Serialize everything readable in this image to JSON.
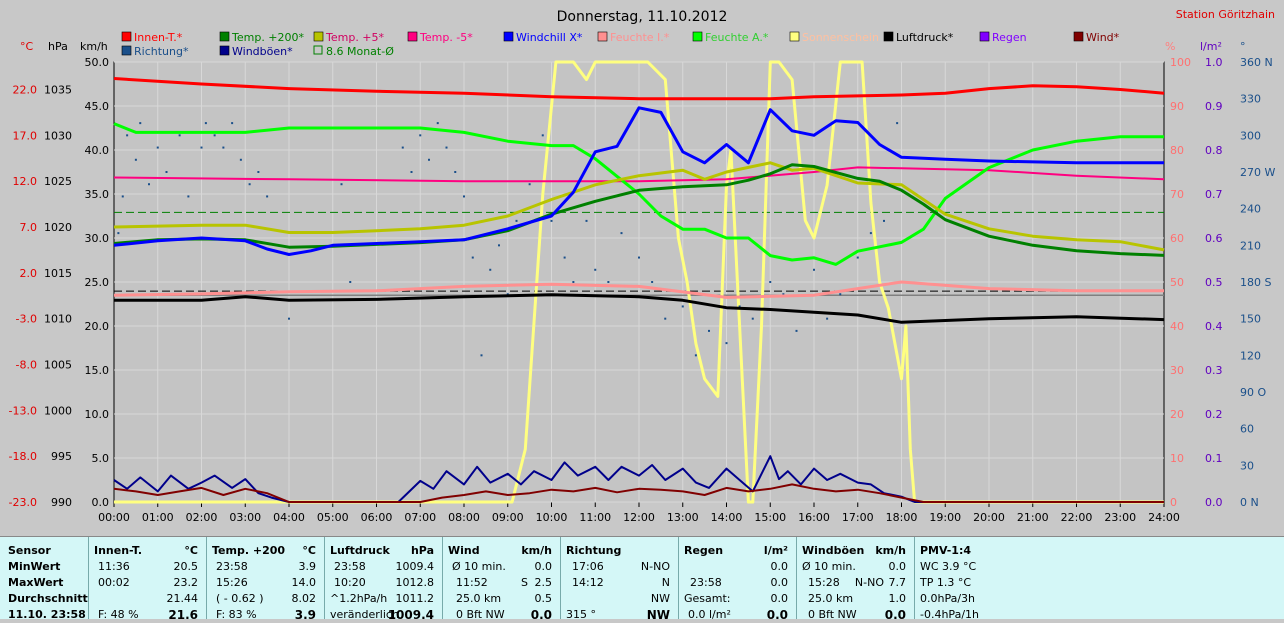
{
  "header": {
    "title": "Donnerstag, 11.10.2012",
    "station": "Station Göritzhain"
  },
  "legend": {
    "row1": [
      {
        "label": "Innen-T.*",
        "color": "#ff0000"
      },
      {
        "label": "Temp. +200*",
        "color": "#008000"
      },
      {
        "label": "Temp. +5*",
        "color": "#b8c400"
      },
      {
        "label": "Temp. -5*",
        "color": "#ff0080"
      },
      {
        "label": "Windchill X*",
        "color": "#0000ff"
      },
      {
        "label": "Feuchte I.*",
        "color": "#ff9090"
      },
      {
        "label": "Feuchte A.*",
        "color": "#00ff00"
      },
      {
        "label": "Sonnenschein",
        "color": "#ffff80"
      },
      {
        "label": "Luftdruck*",
        "color": "#000000"
      },
      {
        "label": "Regen",
        "color": "#8000ff"
      },
      {
        "label": "Wind*",
        "color": "#800000"
      }
    ],
    "row2": [
      {
        "label": "Richtung*",
        "color": "#1a4f8a"
      },
      {
        "label": "Windböen*",
        "color": "#00008b"
      },
      {
        "label": "8.6 Monat-Ø",
        "color": "#008000"
      }
    ]
  },
  "axis_units": {
    "temp": "°C",
    "pressure": "hPa",
    "wind": "km/h",
    "humidity": "%",
    "rain": "l/m²",
    "direction": "°"
  },
  "chart_data": {
    "type": "line",
    "title": "Donnerstag, 11.10.2012",
    "x_ticks": [
      "00:00",
      "01:00",
      "02:00",
      "03:00",
      "04:00",
      "05:00",
      "06:00",
      "07:00",
      "08:00",
      "09:00",
      "10:00",
      "11:00",
      "12:00",
      "13:00",
      "14:00",
      "15:00",
      "16:00",
      "17:00",
      "18:00",
      "19:00",
      "20:00",
      "21:00",
      "22:00",
      "23:00",
      "24:00"
    ],
    "xlim": [
      0,
      24
    ],
    "axes": {
      "temp": {
        "ticks": [
          "22.0",
          "17.0",
          "12.0",
          "7.0",
          "2.0",
          "-3.0",
          "-8.0",
          "-13.0",
          "-18.0",
          "-23.0"
        ],
        "range": [
          -23,
          25
        ]
      },
      "pressure": {
        "ticks": [
          "1035",
          "1030",
          "1025",
          "1020",
          "1015",
          "1010",
          "1005",
          "1000",
          "995",
          "990"
        ],
        "range": [
          990,
          1038
        ]
      },
      "wind": {
        "ticks": [
          "50.0",
          "45.0",
          "40.0",
          "35.0",
          "30.0",
          "25.0",
          "20.0",
          "15.0",
          "10.0",
          "5.0",
          "0.0"
        ],
        "range": [
          0,
          50
        ]
      },
      "humidity": {
        "ticks": [
          "100",
          "90",
          "80",
          "70",
          "60",
          "50",
          "40",
          "30",
          "20",
          "10",
          "0"
        ],
        "range": [
          0,
          100
        ]
      },
      "rain": {
        "ticks": [
          "1.0",
          "0.9",
          "0.8",
          "0.7",
          "0.6",
          "0.5",
          "0.4",
          "0.3",
          "0.2",
          "0.1",
          "0.0"
        ],
        "range": [
          0,
          1.0
        ]
      },
      "direction": {
        "ticks": [
          "360 N",
          "330",
          "300",
          "270 W",
          "240",
          "210",
          "180 S",
          "150",
          "120",
          "90 O",
          "60",
          "30",
          "0 N"
        ],
        "range": [
          0,
          360
        ]
      }
    },
    "series": [
      {
        "name": "Innen-T.*",
        "axis": "temp",
        "color": "#ff0000",
        "width": 3,
        "x": [
          0,
          2,
          4,
          6,
          8,
          10,
          12,
          14,
          15,
          16,
          17,
          18,
          19,
          20,
          21,
          22,
          23,
          24
        ],
        "y": [
          23.2,
          22.6,
          22.1,
          21.8,
          21.6,
          21.2,
          21.0,
          21.0,
          21.0,
          21.2,
          21.3,
          21.4,
          21.6,
          22.1,
          22.4,
          22.3,
          22.0,
          21.6
        ]
      },
      {
        "name": "Temp. +200*",
        "axis": "temp",
        "color": "#008000",
        "width": 3,
        "x": [
          0,
          1,
          2,
          3,
          4,
          5,
          6,
          7,
          8,
          9,
          10,
          11,
          12,
          13,
          14,
          14.5,
          15,
          15.5,
          16,
          17,
          17.5,
          18,
          18.5,
          19,
          20,
          21,
          22,
          23,
          24
        ],
        "y": [
          5.2,
          5.6,
          5.7,
          5.6,
          4.8,
          4.9,
          5.1,
          5.3,
          5.6,
          6.6,
          8.4,
          9.8,
          11.0,
          11.4,
          11.6,
          12.1,
          12.8,
          13.8,
          13.6,
          12.3,
          12.0,
          11.0,
          9.5,
          7.8,
          6.0,
          5.0,
          4.4,
          4.1,
          3.9
        ]
      },
      {
        "name": "Temp. +5*",
        "axis": "temp",
        "color": "#b8c400",
        "width": 3,
        "x": [
          0,
          1,
          2,
          3,
          4,
          5,
          6,
          7,
          8,
          9,
          10,
          11,
          12,
          13,
          13.5,
          14,
          15,
          15.5,
          16,
          17,
          18,
          19,
          20,
          21,
          22,
          23,
          24
        ],
        "y": [
          7.0,
          7.1,
          7.2,
          7.2,
          6.4,
          6.4,
          6.6,
          6.8,
          7.2,
          8.2,
          10.0,
          11.6,
          12.6,
          13.2,
          12.2,
          13.0,
          14.0,
          13.2,
          13.4,
          11.8,
          11.6,
          8.4,
          6.8,
          6.0,
          5.6,
          5.4,
          4.5
        ]
      },
      {
        "name": "Temp. -5*",
        "axis": "temp",
        "color": "#ff0080",
        "width": 2,
        "x": [
          0,
          4,
          8,
          12,
          14,
          16,
          17,
          18,
          20,
          22,
          24
        ],
        "y": [
          12.4,
          12.2,
          12.0,
          12.0,
          12.2,
          13.0,
          13.5,
          13.4,
          13.2,
          12.6,
          12.2
        ]
      },
      {
        "name": "Windchill X*",
        "axis": "temp",
        "color": "#0000ff",
        "width": 3,
        "x": [
          0,
          1,
          2,
          3,
          3.5,
          4,
          4.5,
          5,
          6,
          7,
          8,
          9,
          10,
          10.5,
          11,
          11.5,
          12,
          12.5,
          13,
          13.5,
          14,
          14.5,
          15,
          15.5,
          16,
          16.5,
          17,
          17.5,
          18,
          19,
          20,
          22,
          24
        ],
        "y": [
          5.0,
          5.5,
          5.8,
          5.5,
          4.6,
          4.0,
          4.4,
          5.0,
          5.2,
          5.4,
          5.6,
          6.8,
          8.2,
          10.8,
          15.2,
          15.8,
          20.0,
          19.5,
          15.2,
          14.0,
          16.0,
          14.0,
          19.8,
          17.5,
          17.0,
          18.6,
          18.4,
          16.0,
          14.6,
          14.4,
          14.2,
          14.0,
          14.0
        ]
      },
      {
        "name": "Feuchte I.*",
        "axis": "humidity",
        "color": "#ff9090",
        "width": 3,
        "x": [
          0,
          2,
          4,
          6,
          8,
          10,
          12,
          14,
          16,
          17,
          18,
          20,
          22,
          24
        ],
        "y": [
          47.0,
          47.3,
          47.8,
          48.0,
          49.0,
          49.5,
          49.0,
          46.5,
          47.0,
          48.5,
          50.0,
          48.5,
          48.0,
          48.0
        ]
      },
      {
        "name": "Feuchte A.*",
        "axis": "humidity",
        "color": "#00ff00",
        "width": 3,
        "x": [
          0,
          0.5,
          1,
          2,
          3,
          4,
          5,
          6,
          7,
          8,
          9,
          10,
          10.5,
          11,
          11.5,
          12,
          12.5,
          13,
          13.5,
          14,
          14.5,
          15,
          15.5,
          16,
          16.5,
          17,
          17.5,
          18,
          18.5,
          19,
          20,
          21,
          22,
          23,
          24
        ],
        "y": [
          86.0,
          84.0,
          84.0,
          84.0,
          84.0,
          85.0,
          85.0,
          85.0,
          85.0,
          84.0,
          82.0,
          81.0,
          81.0,
          78.0,
          74.0,
          70.0,
          65.0,
          62.0,
          62.0,
          60.0,
          60.0,
          56.0,
          55.0,
          55.5,
          54.0,
          57.0,
          58.0,
          59.0,
          62.0,
          69.0,
          76.0,
          80.0,
          82.0,
          83.0,
          83.0
        ]
      },
      {
        "name": "Sonnenschein",
        "axis": "wind",
        "color": "#ffff80",
        "width": 3,
        "x": [
          0,
          9.1,
          9.4,
          9.8,
          10.1,
          10.3,
          10.5,
          10.8,
          11.0,
          11.4,
          11.8,
          12.2,
          12.6,
          12.9,
          13.1,
          13.3,
          13.5,
          13.8,
          14.0,
          14.1,
          14.3,
          14.5,
          14.6,
          14.8,
          15.0,
          15.2,
          15.5,
          15.8,
          16.0,
          16.3,
          16.6,
          16.9,
          17.1,
          17.3,
          17.5,
          17.7,
          18.0,
          18.1,
          18.2,
          18.3,
          24
        ],
        "y": [
          0,
          0,
          6,
          35,
          50,
          50,
          50,
          48,
          50,
          50,
          50,
          50,
          48,
          30,
          25,
          18,
          14,
          12,
          36,
          40,
          20,
          0,
          0,
          20,
          50,
          50,
          48,
          32,
          30,
          36,
          50,
          50,
          50,
          34,
          25,
          22,
          14,
          20,
          6,
          0,
          0
        ]
      },
      {
        "name": "Luftdruck*",
        "axis": "pressure",
        "color": "#000000",
        "width": 3,
        "x": [
          0,
          2,
          3,
          4,
          6,
          8,
          10,
          12,
          13,
          14,
          15,
          16,
          17,
          18,
          20,
          22,
          24
        ],
        "y": [
          1012.0,
          1012.0,
          1012.4,
          1012.0,
          1012.1,
          1012.4,
          1012.6,
          1012.4,
          1012.0,
          1011.2,
          1011.0,
          1010.7,
          1010.4,
          1009.6,
          1010.0,
          1010.2,
          1009.9
        ]
      },
      {
        "name": "Wind*",
        "axis": "wind",
        "color": "#800000",
        "width": 2,
        "x": [
          0,
          0.5,
          1,
          1.5,
          2,
          2.5,
          3,
          3.5,
          4,
          7,
          7.5,
          8,
          8.5,
          9,
          9.5,
          10,
          10.5,
          11,
          11.5,
          12,
          12.5,
          13,
          13.5,
          14,
          14.5,
          15,
          15.5,
          16,
          16.5,
          17,
          17.5,
          18,
          18.5,
          24
        ],
        "y": [
          1.5,
          1.2,
          0.8,
          1.2,
          1.6,
          0.8,
          1.5,
          1.0,
          0,
          0,
          0.5,
          0.8,
          1.2,
          0.8,
          1.0,
          1.4,
          1.2,
          1.6,
          1.1,
          1.5,
          1.4,
          1.2,
          0.8,
          1.6,
          1.2,
          1.5,
          2.0,
          1.5,
          1.2,
          1.4,
          1.0,
          0.5,
          0,
          0
        ]
      },
      {
        "name": "Windböen*",
        "axis": "wind",
        "color": "#00008b",
        "width": 2,
        "x": [
          0,
          0.3,
          0.6,
          1,
          1.3,
          1.7,
          2,
          2.3,
          2.7,
          3,
          3.3,
          3.6,
          4,
          6.5,
          7,
          7.3,
          7.6,
          8,
          8.3,
          8.6,
          9,
          9.3,
          9.6,
          10,
          10.3,
          10.6,
          11,
          11.3,
          11.6,
          12,
          12.3,
          12.6,
          13,
          13.3,
          13.6,
          14,
          14.3,
          14.6,
          15,
          15.2,
          15.4,
          15.7,
          16,
          16.3,
          16.6,
          17,
          17.3,
          17.6,
          18,
          18.3,
          24
        ],
        "y": [
          2.5,
          1.5,
          2.8,
          1.2,
          3.0,
          1.5,
          2.2,
          3.0,
          1.6,
          2.6,
          1.0,
          0.5,
          0,
          0,
          2.4,
          1.5,
          3.5,
          2.0,
          4.0,
          2.2,
          3.2,
          2.0,
          3.5,
          2.5,
          4.5,
          3.0,
          4.0,
          2.5,
          4.0,
          3.0,
          4.2,
          2.5,
          3.8,
          2.2,
          1.6,
          3.8,
          2.5,
          1.2,
          5.2,
          2.6,
          3.5,
          2.0,
          3.8,
          2.5,
          3.2,
          2.2,
          2.0,
          1.0,
          0.6,
          0,
          0
        ]
      },
      {
        "name": "Richtung*",
        "axis": "direction",
        "color": "#1a4f8a",
        "width": 0,
        "points": true,
        "x": [
          0.1,
          0.2,
          0.3,
          0.5,
          0.6,
          0.8,
          1.0,
          1.2,
          1.5,
          1.7,
          2.0,
          2.1,
          2.3,
          2.5,
          2.7,
          2.9,
          3.1,
          3.3,
          3.5,
          4.0,
          5.2,
          5.4,
          6.6,
          6.8,
          7.0,
          7.2,
          7.4,
          7.6,
          7.8,
          8.0,
          8.2,
          8.4,
          8.6,
          8.8,
          9.0,
          9.2,
          9.5,
          9.8,
          10.0,
          10.3,
          10.5,
          10.8,
          11.0,
          11.3,
          11.6,
          12.0,
          12.3,
          12.6,
          13.0,
          13.3,
          13.6,
          14.0,
          14.3,
          14.6,
          15.0,
          15.3,
          15.6,
          16.0,
          16.3,
          16.6,
          17.0,
          17.3,
          17.6,
          17.9
        ],
        "y": [
          220,
          250,
          300,
          280,
          310,
          260,
          290,
          270,
          300,
          250,
          290,
          310,
          300,
          290,
          310,
          280,
          260,
          270,
          250,
          150,
          260,
          180,
          290,
          270,
          300,
          280,
          310,
          290,
          270,
          250,
          200,
          120,
          190,
          210,
          170,
          230,
          260,
          300,
          230,
          200,
          180,
          230,
          190,
          180,
          220,
          200,
          180,
          150,
          160,
          120,
          140,
          130,
          160,
          150,
          180,
          170,
          140,
          190,
          150,
          170,
          200,
          220,
          230,
          310
        ]
      }
    ],
    "reference_lines": [
      {
        "name": "8.6 Monat-Ø",
        "axis": "temp",
        "y": 8.6,
        "color": "#008000",
        "dash": true
      },
      {
        "name": "",
        "axis": "temp",
        "y": 0.0,
        "color": "#000000",
        "dash": true
      }
    ]
  },
  "stats": {
    "sensor": {
      "h": "Sensor",
      "rows": [
        "MinWert",
        "MaxWert",
        "Durchschnitt",
        "11.10. 23:58"
      ]
    },
    "innen": {
      "h": "Innen-T.",
      "unit": "°C",
      "rows": [
        [
          "11:36",
          "20.5"
        ],
        [
          "00:02",
          "23.2"
        ],
        [
          "",
          "21.44"
        ],
        [
          "F: 48 %",
          "21.6"
        ]
      ]
    },
    "temp200": {
      "h": "Temp. +200",
      "unit": "°C",
      "rows": [
        [
          "23:58",
          "3.9"
        ],
        [
          "15:26",
          "14.0"
        ],
        [
          "( - 0.62 )",
          "8.02"
        ],
        [
          "F: 83 %",
          "3.9"
        ]
      ]
    },
    "luftdruck": {
      "h": "Luftdruck",
      "unit": "hPa",
      "rows": [
        [
          "23:58",
          "1009.4"
        ],
        [
          "10:20",
          "1012.8"
        ],
        [
          "^1.2hPa/h",
          "1011.2"
        ],
        [
          "veränderlich",
          "1009.4"
        ]
      ]
    },
    "wind": {
      "h": "Wind",
      "unit": "km/h",
      "rows": [
        [
          "Ø 10 min.",
          "",
          "0.0"
        ],
        [
          "11:52",
          "S",
          "2.5"
        ],
        [
          "25.0 km",
          "",
          "0.5"
        ],
        [
          "0 Bft NW",
          "",
          "0.0"
        ]
      ]
    },
    "richtung": {
      "h": "Richtung",
      "rows": [
        [
          "17:06",
          "N-NO"
        ],
        [
          "14:12",
          "N"
        ],
        [
          "",
          "NW"
        ],
        [
          "315 °",
          "NW"
        ]
      ]
    },
    "regen": {
      "h": "Regen",
      "unit": "l/m²",
      "rows": [
        [
          "",
          "0.0"
        ],
        [
          "23:58",
          "0.0"
        ],
        [
          "Gesamt:",
          "0.0"
        ],
        [
          "0.0 l/m²",
          "0.0"
        ]
      ]
    },
    "boeen": {
      "h": "Windböen",
      "unit": "km/h",
      "rows": [
        [
          "Ø 10 min.",
          "",
          "0.0"
        ],
        [
          "15:28",
          "N-NO",
          "7.7"
        ],
        [
          "25.0 km",
          "",
          "1.0"
        ],
        [
          "0 Bft NW",
          "",
          "0.0"
        ]
      ]
    },
    "pmv": {
      "h": "PMV-1:4",
      "rows": [
        "WC 3.9 °C",
        "TP 1.3 °C",
        "0.0hPa/3h",
        "-0.4hPa/1h"
      ]
    }
  }
}
